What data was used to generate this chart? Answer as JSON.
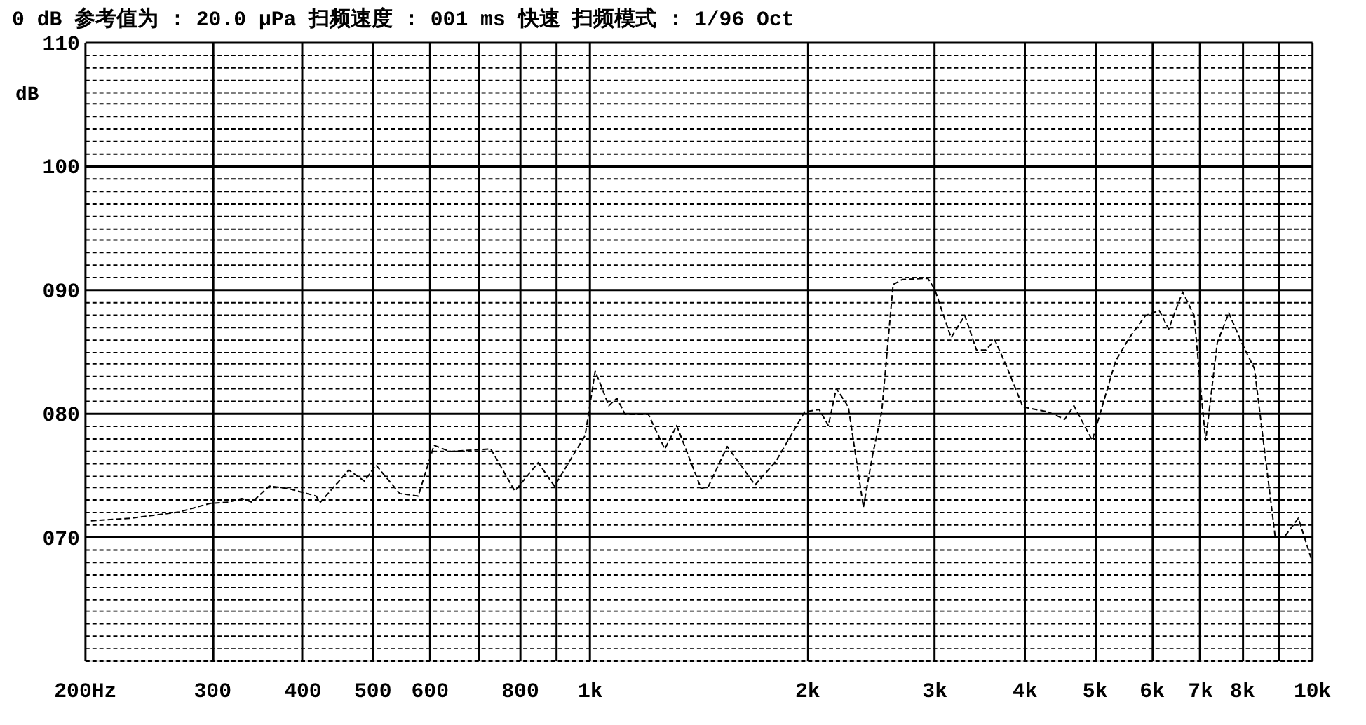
{
  "chart_data": {
    "type": "line",
    "title": "0 dB 参考值为 : 20.0 μPa     扫频速度 : 001 ms 快速   扫频模式 : 1/96   Oct",
    "ylabel": "dB",
    "log": "x",
    "grid": true,
    "line_style": "dashed",
    "marker": "none",
    "xlim": [
      200,
      10000
    ],
    "xticks": [
      {
        "value": 200,
        "label": "200Hz"
      },
      300,
      400,
      500,
      600,
      {
        "value": 700,
        "label": null
      },
      800,
      {
        "value": 900,
        "label": null
      },
      {
        "value": 1000,
        "label": "1k"
      },
      {
        "value": 2000,
        "label": "2k"
      },
      {
        "value": 3000,
        "label": "3k"
      },
      {
        "value": 4000,
        "label": "4k"
      },
      {
        "value": 5000,
        "label": "5k"
      },
      {
        "value": 6000,
        "label": "6k"
      },
      {
        "value": 7000,
        "label": "7k"
      },
      {
        "value": 8000,
        "label": "8k"
      },
      {
        "value": 9000,
        "label": null
      },
      {
        "value": 10000,
        "label": "10k"
      }
    ],
    "ylim": [
      60,
      110
    ],
    "yticks": [
      {
        "value": 60,
        "label": null
      },
      {
        "value": 61,
        "label": null
      },
      {
        "value": 62,
        "label": null
      },
      {
        "value": 63,
        "label": null
      },
      {
        "value": 64,
        "label": null
      },
      {
        "value": 65,
        "label": null
      },
      {
        "value": 66,
        "label": null
      },
      {
        "value": 67,
        "label": null
      },
      {
        "value": 68,
        "label": null
      },
      {
        "value": 69,
        "label": null
      },
      {
        "value": 70,
        "label": "070"
      },
      {
        "value": 71,
        "label": null
      },
      {
        "value": 72,
        "label": null
      },
      {
        "value": 73,
        "label": null
      },
      {
        "value": 74,
        "label": null
      },
      {
        "value": 75,
        "label": null
      },
      {
        "value": 76,
        "label": null
      },
      {
        "value": 77,
        "label": null
      },
      {
        "value": 78,
        "label": null
      },
      {
        "value": 79,
        "label": null
      },
      {
        "value": 80,
        "label": "080"
      },
      {
        "value": 81,
        "label": null
      },
      {
        "value": 82,
        "label": null
      },
      {
        "value": 83,
        "label": null
      },
      {
        "value": 84,
        "label": null
      },
      {
        "value": 85,
        "label": null
      },
      {
        "value": 86,
        "label": null
      },
      {
        "value": 87,
        "label": null
      },
      {
        "value": 88,
        "label": null
      },
      {
        "value": 89,
        "label": null
      },
      {
        "value": 90,
        "label": "090"
      },
      {
        "value": 91,
        "label": null
      },
      {
        "value": 92,
        "label": null
      },
      {
        "value": 93,
        "label": null
      },
      {
        "value": 94,
        "label": null
      },
      {
        "value": 95,
        "label": null
      },
      {
        "value": 96,
        "label": null
      },
      {
        "value": 97,
        "label": null
      },
      {
        "value": 98,
        "label": null
      },
      {
        "value": 99,
        "label": null
      },
      100,
      {
        "value": 101,
        "label": null
      },
      {
        "value": 102,
        "label": null
      },
      {
        "value": 103,
        "label": null
      },
      {
        "value": 104,
        "label": null
      },
      {
        "value": 105,
        "label": null
      },
      {
        "value": 106,
        "label": null
      },
      {
        "value": 107,
        "label": null
      },
      {
        "value": 108,
        "label": null
      },
      {
        "value": 109,
        "label": null
      },
      110
    ],
    "x": [
      204,
      231,
      270,
      298,
      316,
      330,
      341,
      360,
      383,
      418,
      424,
      464,
      488,
      506,
      546,
      579,
      609,
      640,
      730,
      788,
      849,
      894,
      986,
      1018,
      1036,
      1063,
      1091,
      1120,
      1206,
      1271,
      1320,
      1427,
      1461,
      1551,
      1695,
      1811,
      1985,
      2079,
      2141,
      2196,
      2282,
      2394,
      2467,
      2538,
      2632,
      2710,
      2940,
      3006,
      3166,
      3308,
      3433,
      3536,
      3641,
      3778,
      3981,
      4315,
      4548,
      4684,
      4966,
      5348,
      5590,
      5886,
      6148,
      6336,
      6624,
      6872,
      7026,
      7130,
      7398,
      7676,
      8026,
      8328,
      8898,
      9165,
      9580,
      10000
    ],
    "series": [
      {
        "color": "#000000",
        "values": [
          71.3,
          71.5,
          72.0,
          72.7,
          72.8,
          73.1,
          72.8,
          74.1,
          73.9,
          73.3,
          72.8,
          75.4,
          74.5,
          75.8,
          73.5,
          73.3,
          77.4,
          76.9,
          77.1,
          73.7,
          76.0,
          74.1,
          78.2,
          83.4,
          82.3,
          80.6,
          81.2,
          79.9,
          79.9,
          77.1,
          79.0,
          73.9,
          74.1,
          77.3,
          74.2,
          76.1,
          80.1,
          80.3,
          79.0,
          82.0,
          80.5,
          72.4,
          76.7,
          80.1,
          90.4,
          90.8,
          90.9,
          90.0,
          86.1,
          87.9,
          85.1,
          85.1,
          85.9,
          83.8,
          80.5,
          80.1,
          79.5,
          80.6,
          77.8,
          84.2,
          86.1,
          87.9,
          88.3,
          86.8,
          89.8,
          87.9,
          81.6,
          77.8,
          85.7,
          88.1,
          85.5,
          83.6,
          70.0,
          70.0,
          71.5,
          68.1
        ]
      }
    ]
  }
}
